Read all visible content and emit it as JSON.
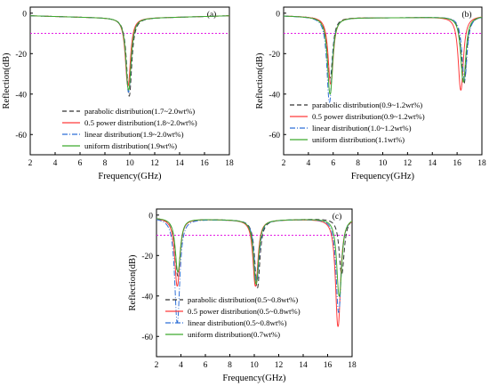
{
  "chart_data": [
    {
      "type": "line",
      "panel_label": "(a)",
      "xlabel": "Frequency(GHz)",
      "ylabel": "Reflection(dB)",
      "xlim": [
        2,
        18
      ],
      "ylim": [
        -70,
        3
      ],
      "xticks": [
        2,
        4,
        6,
        8,
        10,
        12,
        14,
        16,
        18
      ],
      "yticks": [
        0,
        -20,
        -40,
        -60
      ],
      "reference_line": {
        "y": -10,
        "color": "#e41ae4",
        "style": "dotted"
      },
      "legend_position": "bottom-center",
      "series": [
        {
          "name": "parabolic distribution(1.7~2.0wt%)",
          "color": "#333333",
          "dash": "5,3",
          "dips": [
            [
              9.95,
              -41
            ]
          ]
        },
        {
          "name": "0.5 power distribution(1.8~2.0wt%)",
          "color": "#ff3b3b",
          "dash": "",
          "dips": [
            [
              9.85,
              -36
            ]
          ]
        },
        {
          "name": "linear distribution(1.9~2.0wt%)",
          "color": "#2f6fd6",
          "dash": "6,2,1,2",
          "dips": [
            [
              9.9,
              -39
            ]
          ]
        },
        {
          "name": "uniform distribution(1.9wt%)",
          "color": "#3faa2e",
          "dash": "",
          "dips": [
            [
              9.9,
              -38
            ]
          ]
        }
      ]
    },
    {
      "type": "line",
      "panel_label": "(b)",
      "xlabel": "Frequency(GHz)",
      "ylabel": "Reflection(dB)",
      "xlim": [
        2,
        18
      ],
      "ylim": [
        -70,
        3
      ],
      "xticks": [
        2,
        4,
        6,
        8,
        10,
        12,
        14,
        16,
        18
      ],
      "yticks": [
        0,
        -20,
        -40,
        -60
      ],
      "reference_line": {
        "y": -10,
        "color": "#e41ae4",
        "style": "dotted"
      },
      "legend_position": "bottom-center",
      "series": [
        {
          "name": "parabolic distribution(0.9~1.2wt%)",
          "color": "#333333",
          "dash": "5,3",
          "dips": [
            [
              5.75,
              -32
            ],
            [
              16.55,
              -35
            ]
          ]
        },
        {
          "name": "0.5 power distribution(0.9~1.2wt%)",
          "color": "#ff3b3b",
          "dash": "",
          "dips": [
            [
              5.8,
              -35
            ],
            [
              16.3,
              -38
            ]
          ]
        },
        {
          "name": "linear distribution(1.0~1.2wt%)",
          "color": "#2f6fd6",
          "dash": "6,2,1,2",
          "dips": [
            [
              5.7,
              -44
            ],
            [
              16.6,
              -33
            ]
          ]
        },
        {
          "name": "uniform distribution(1.1wt%)",
          "color": "#3faa2e",
          "dash": "",
          "dips": [
            [
              5.75,
              -40
            ],
            [
              16.5,
              -34
            ]
          ]
        }
      ]
    },
    {
      "type": "line",
      "panel_label": "(c)",
      "xlabel": "Frequency(GHz)",
      "ylabel": "Reflection(dB)",
      "xlim": [
        2,
        18
      ],
      "ylim": [
        -70,
        3
      ],
      "xticks": [
        2,
        4,
        6,
        8,
        10,
        12,
        14,
        16,
        18
      ],
      "yticks": [
        0,
        -20,
        -40,
        -60
      ],
      "reference_line": {
        "y": -10,
        "color": "#e41ae4",
        "style": "dotted"
      },
      "legend_position": "bottom-center",
      "series": [
        {
          "name": "parabolic distribution(0.5~0.8wt%)",
          "color": "#333333",
          "dash": "5,3",
          "dips": [
            [
              3.75,
              -30
            ],
            [
              10.25,
              -36
            ],
            [
              17.15,
              -29
            ]
          ]
        },
        {
          "name": "0.5 power distribution(0.5~0.8wt%)",
          "color": "#ff3b3b",
          "dash": "",
          "dips": [
            [
              3.7,
              -35
            ],
            [
              10.1,
              -35
            ],
            [
              16.85,
              -55
            ]
          ]
        },
        {
          "name": "linear distribution(0.5~0.8wt%)",
          "color": "#2f6fd6",
          "dash": "6,2,1,2",
          "dips": [
            [
              3.7,
              -53
            ],
            [
              10.2,
              -33
            ],
            [
              16.9,
              -48
            ]
          ]
        },
        {
          "name": "uniform distribution(0.7wt%)",
          "color": "#3faa2e",
          "dash": "",
          "dips": [
            [
              3.75,
              -28
            ],
            [
              10.15,
              -34
            ],
            [
              16.95,
              -40
            ]
          ]
        }
      ]
    }
  ]
}
